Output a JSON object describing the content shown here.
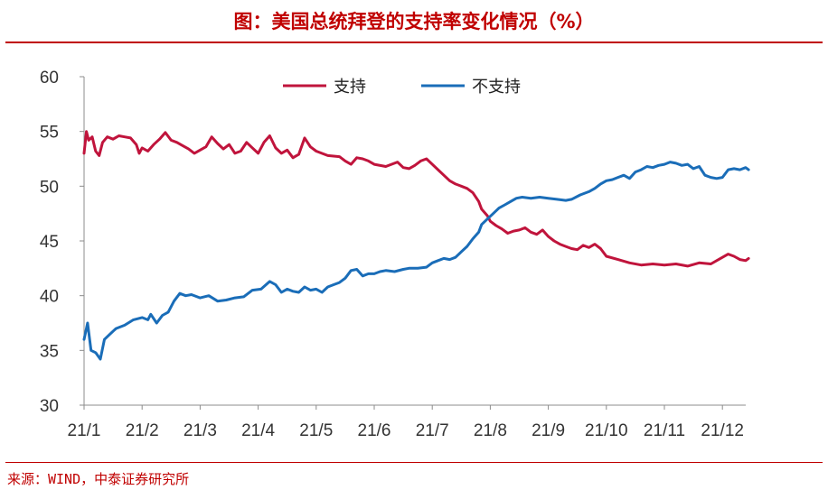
{
  "header": {
    "title": "图：美国总统拜登的支持率变化情况（%）"
  },
  "footer": {
    "source": "来源：WIND，中泰证券研究所"
  },
  "chart_data": {
    "type": "line",
    "title": "图：美国总统拜登的支持率变化情况（%）",
    "categories": [
      "21/1",
      "21/2",
      "21/3",
      "21/4",
      "21/5",
      "21/6",
      "21/7",
      "21/8",
      "21/9",
      "21/10",
      "21/11",
      "21/12"
    ],
    "ylim": [
      30,
      60
    ],
    "yticks": [
      30,
      35,
      40,
      45,
      50,
      55,
      60
    ],
    "grid": false,
    "legend_position": "top-center",
    "series": [
      {
        "name": "支持",
        "color": "#c0143c",
        "points": [
          [
            0.0,
            53.0
          ],
          [
            0.04,
            55.0
          ],
          [
            0.08,
            54.2
          ],
          [
            0.14,
            54.5
          ],
          [
            0.2,
            53.2
          ],
          [
            0.26,
            52.8
          ],
          [
            0.32,
            54.0
          ],
          [
            0.4,
            54.5
          ],
          [
            0.5,
            54.3
          ],
          [
            0.6,
            54.6
          ],
          [
            0.7,
            54.5
          ],
          [
            0.8,
            54.4
          ],
          [
            0.9,
            53.8
          ],
          [
            0.95,
            53.0
          ],
          [
            1.0,
            53.5
          ],
          [
            1.1,
            53.2
          ],
          [
            1.2,
            53.8
          ],
          [
            1.3,
            54.3
          ],
          [
            1.4,
            54.9
          ],
          [
            1.5,
            54.2
          ],
          [
            1.6,
            54.0
          ],
          [
            1.7,
            53.7
          ],
          [
            1.8,
            53.4
          ],
          [
            1.9,
            53.0
          ],
          [
            2.0,
            53.3
          ],
          [
            2.1,
            53.6
          ],
          [
            2.2,
            54.5
          ],
          [
            2.3,
            53.9
          ],
          [
            2.4,
            53.4
          ],
          [
            2.5,
            53.8
          ],
          [
            2.6,
            53.0
          ],
          [
            2.7,
            53.2
          ],
          [
            2.8,
            54.0
          ],
          [
            2.9,
            53.5
          ],
          [
            3.0,
            53.0
          ],
          [
            3.1,
            54.0
          ],
          [
            3.2,
            54.6
          ],
          [
            3.3,
            53.5
          ],
          [
            3.4,
            53.0
          ],
          [
            3.5,
            53.3
          ],
          [
            3.6,
            52.6
          ],
          [
            3.7,
            52.9
          ],
          [
            3.8,
            54.4
          ],
          [
            3.9,
            53.6
          ],
          [
            4.0,
            53.2
          ],
          [
            4.2,
            52.8
          ],
          [
            4.4,
            52.7
          ],
          [
            4.5,
            52.3
          ],
          [
            4.6,
            52.0
          ],
          [
            4.7,
            52.6
          ],
          [
            4.8,
            52.5
          ],
          [
            4.9,
            52.3
          ],
          [
            5.0,
            52.0
          ],
          [
            5.2,
            51.8
          ],
          [
            5.4,
            52.2
          ],
          [
            5.5,
            51.7
          ],
          [
            5.6,
            51.6
          ],
          [
            5.7,
            51.9
          ],
          [
            5.8,
            52.3
          ],
          [
            5.9,
            52.5
          ],
          [
            6.0,
            52.0
          ],
          [
            6.1,
            51.5
          ],
          [
            6.2,
            51.0
          ],
          [
            6.3,
            50.5
          ],
          [
            6.4,
            50.2
          ],
          [
            6.5,
            50.0
          ],
          [
            6.6,
            49.8
          ],
          [
            6.7,
            49.4
          ],
          [
            6.8,
            48.6
          ],
          [
            6.85,
            47.9
          ],
          [
            6.95,
            47.3
          ],
          [
            7.0,
            46.8
          ],
          [
            7.1,
            46.4
          ],
          [
            7.2,
            46.1
          ],
          [
            7.3,
            45.7
          ],
          [
            7.4,
            45.9
          ],
          [
            7.5,
            46.0
          ],
          [
            7.6,
            46.2
          ],
          [
            7.7,
            45.8
          ],
          [
            7.8,
            45.6
          ],
          [
            7.9,
            46.0
          ],
          [
            8.0,
            45.4
          ],
          [
            8.1,
            45.0
          ],
          [
            8.2,
            44.7
          ],
          [
            8.3,
            44.5
          ],
          [
            8.4,
            44.3
          ],
          [
            8.5,
            44.2
          ],
          [
            8.6,
            44.6
          ],
          [
            8.7,
            44.4
          ],
          [
            8.8,
            44.7
          ],
          [
            8.9,
            44.3
          ],
          [
            9.0,
            43.6
          ],
          [
            9.2,
            43.3
          ],
          [
            9.4,
            43.0
          ],
          [
            9.6,
            42.8
          ],
          [
            9.8,
            42.9
          ],
          [
            10.0,
            42.8
          ],
          [
            10.2,
            42.9
          ],
          [
            10.4,
            42.7
          ],
          [
            10.6,
            43.0
          ],
          [
            10.8,
            42.9
          ],
          [
            11.0,
            43.5
          ],
          [
            11.1,
            43.8
          ],
          [
            11.2,
            43.6
          ],
          [
            11.3,
            43.3
          ],
          [
            11.4,
            43.2
          ],
          [
            11.45,
            43.4
          ]
        ]
      },
      {
        "name": "不支持",
        "color": "#1a6db8",
        "points": [
          [
            0.0,
            36.0
          ],
          [
            0.06,
            37.5
          ],
          [
            0.12,
            35.0
          ],
          [
            0.2,
            34.8
          ],
          [
            0.28,
            34.2
          ],
          [
            0.35,
            36.0
          ],
          [
            0.45,
            36.5
          ],
          [
            0.55,
            37.0
          ],
          [
            0.7,
            37.3
          ],
          [
            0.85,
            37.8
          ],
          [
            1.0,
            38.0
          ],
          [
            1.1,
            37.8
          ],
          [
            1.15,
            38.3
          ],
          [
            1.25,
            37.5
          ],
          [
            1.35,
            38.2
          ],
          [
            1.45,
            38.5
          ],
          [
            1.55,
            39.5
          ],
          [
            1.65,
            40.2
          ],
          [
            1.75,
            40.0
          ],
          [
            1.85,
            40.1
          ],
          [
            2.0,
            39.8
          ],
          [
            2.15,
            40.0
          ],
          [
            2.3,
            39.5
          ],
          [
            2.45,
            39.6
          ],
          [
            2.6,
            39.8
          ],
          [
            2.75,
            39.9
          ],
          [
            2.9,
            40.5
          ],
          [
            3.05,
            40.6
          ],
          [
            3.2,
            41.3
          ],
          [
            3.3,
            41.0
          ],
          [
            3.4,
            40.3
          ],
          [
            3.5,
            40.6
          ],
          [
            3.6,
            40.4
          ],
          [
            3.7,
            40.3
          ],
          [
            3.8,
            40.8
          ],
          [
            3.9,
            40.5
          ],
          [
            4.0,
            40.6
          ],
          [
            4.1,
            40.3
          ],
          [
            4.2,
            40.8
          ],
          [
            4.3,
            41.0
          ],
          [
            4.4,
            41.2
          ],
          [
            4.5,
            41.6
          ],
          [
            4.6,
            42.3
          ],
          [
            4.7,
            42.4
          ],
          [
            4.8,
            41.8
          ],
          [
            4.9,
            42.0
          ],
          [
            5.0,
            42.0
          ],
          [
            5.1,
            42.2
          ],
          [
            5.2,
            42.3
          ],
          [
            5.35,
            42.2
          ],
          [
            5.5,
            42.4
          ],
          [
            5.6,
            42.5
          ],
          [
            5.75,
            42.5
          ],
          [
            5.9,
            42.6
          ],
          [
            6.0,
            43.0
          ],
          [
            6.1,
            43.2
          ],
          [
            6.2,
            43.4
          ],
          [
            6.3,
            43.3
          ],
          [
            6.4,
            43.5
          ],
          [
            6.5,
            44.0
          ],
          [
            6.6,
            44.5
          ],
          [
            6.7,
            45.2
          ],
          [
            6.8,
            45.8
          ],
          [
            6.85,
            46.5
          ],
          [
            6.95,
            47.0
          ],
          [
            7.05,
            47.5
          ],
          [
            7.15,
            48.0
          ],
          [
            7.25,
            48.3
          ],
          [
            7.35,
            48.6
          ],
          [
            7.45,
            48.9
          ],
          [
            7.55,
            49.0
          ],
          [
            7.7,
            48.9
          ],
          [
            7.85,
            49.0
          ],
          [
            8.0,
            48.9
          ],
          [
            8.15,
            48.8
          ],
          [
            8.3,
            48.7
          ],
          [
            8.4,
            48.8
          ],
          [
            8.55,
            49.2
          ],
          [
            8.7,
            49.5
          ],
          [
            8.8,
            49.8
          ],
          [
            8.9,
            50.2
          ],
          [
            9.0,
            50.5
          ],
          [
            9.1,
            50.6
          ],
          [
            9.2,
            50.8
          ],
          [
            9.3,
            51.0
          ],
          [
            9.4,
            50.7
          ],
          [
            9.5,
            51.3
          ],
          [
            9.6,
            51.5
          ],
          [
            9.7,
            51.8
          ],
          [
            9.8,
            51.7
          ],
          [
            9.9,
            51.9
          ],
          [
            10.0,
            52.0
          ],
          [
            10.1,
            52.2
          ],
          [
            10.2,
            52.1
          ],
          [
            10.3,
            51.9
          ],
          [
            10.4,
            52.0
          ],
          [
            10.5,
            51.6
          ],
          [
            10.6,
            51.8
          ],
          [
            10.7,
            51.0
          ],
          [
            10.8,
            50.8
          ],
          [
            10.9,
            50.7
          ],
          [
            11.0,
            50.8
          ],
          [
            11.1,
            51.5
          ],
          [
            11.2,
            51.6
          ],
          [
            11.3,
            51.5
          ],
          [
            11.4,
            51.7
          ],
          [
            11.45,
            51.5
          ]
        ]
      }
    ]
  }
}
